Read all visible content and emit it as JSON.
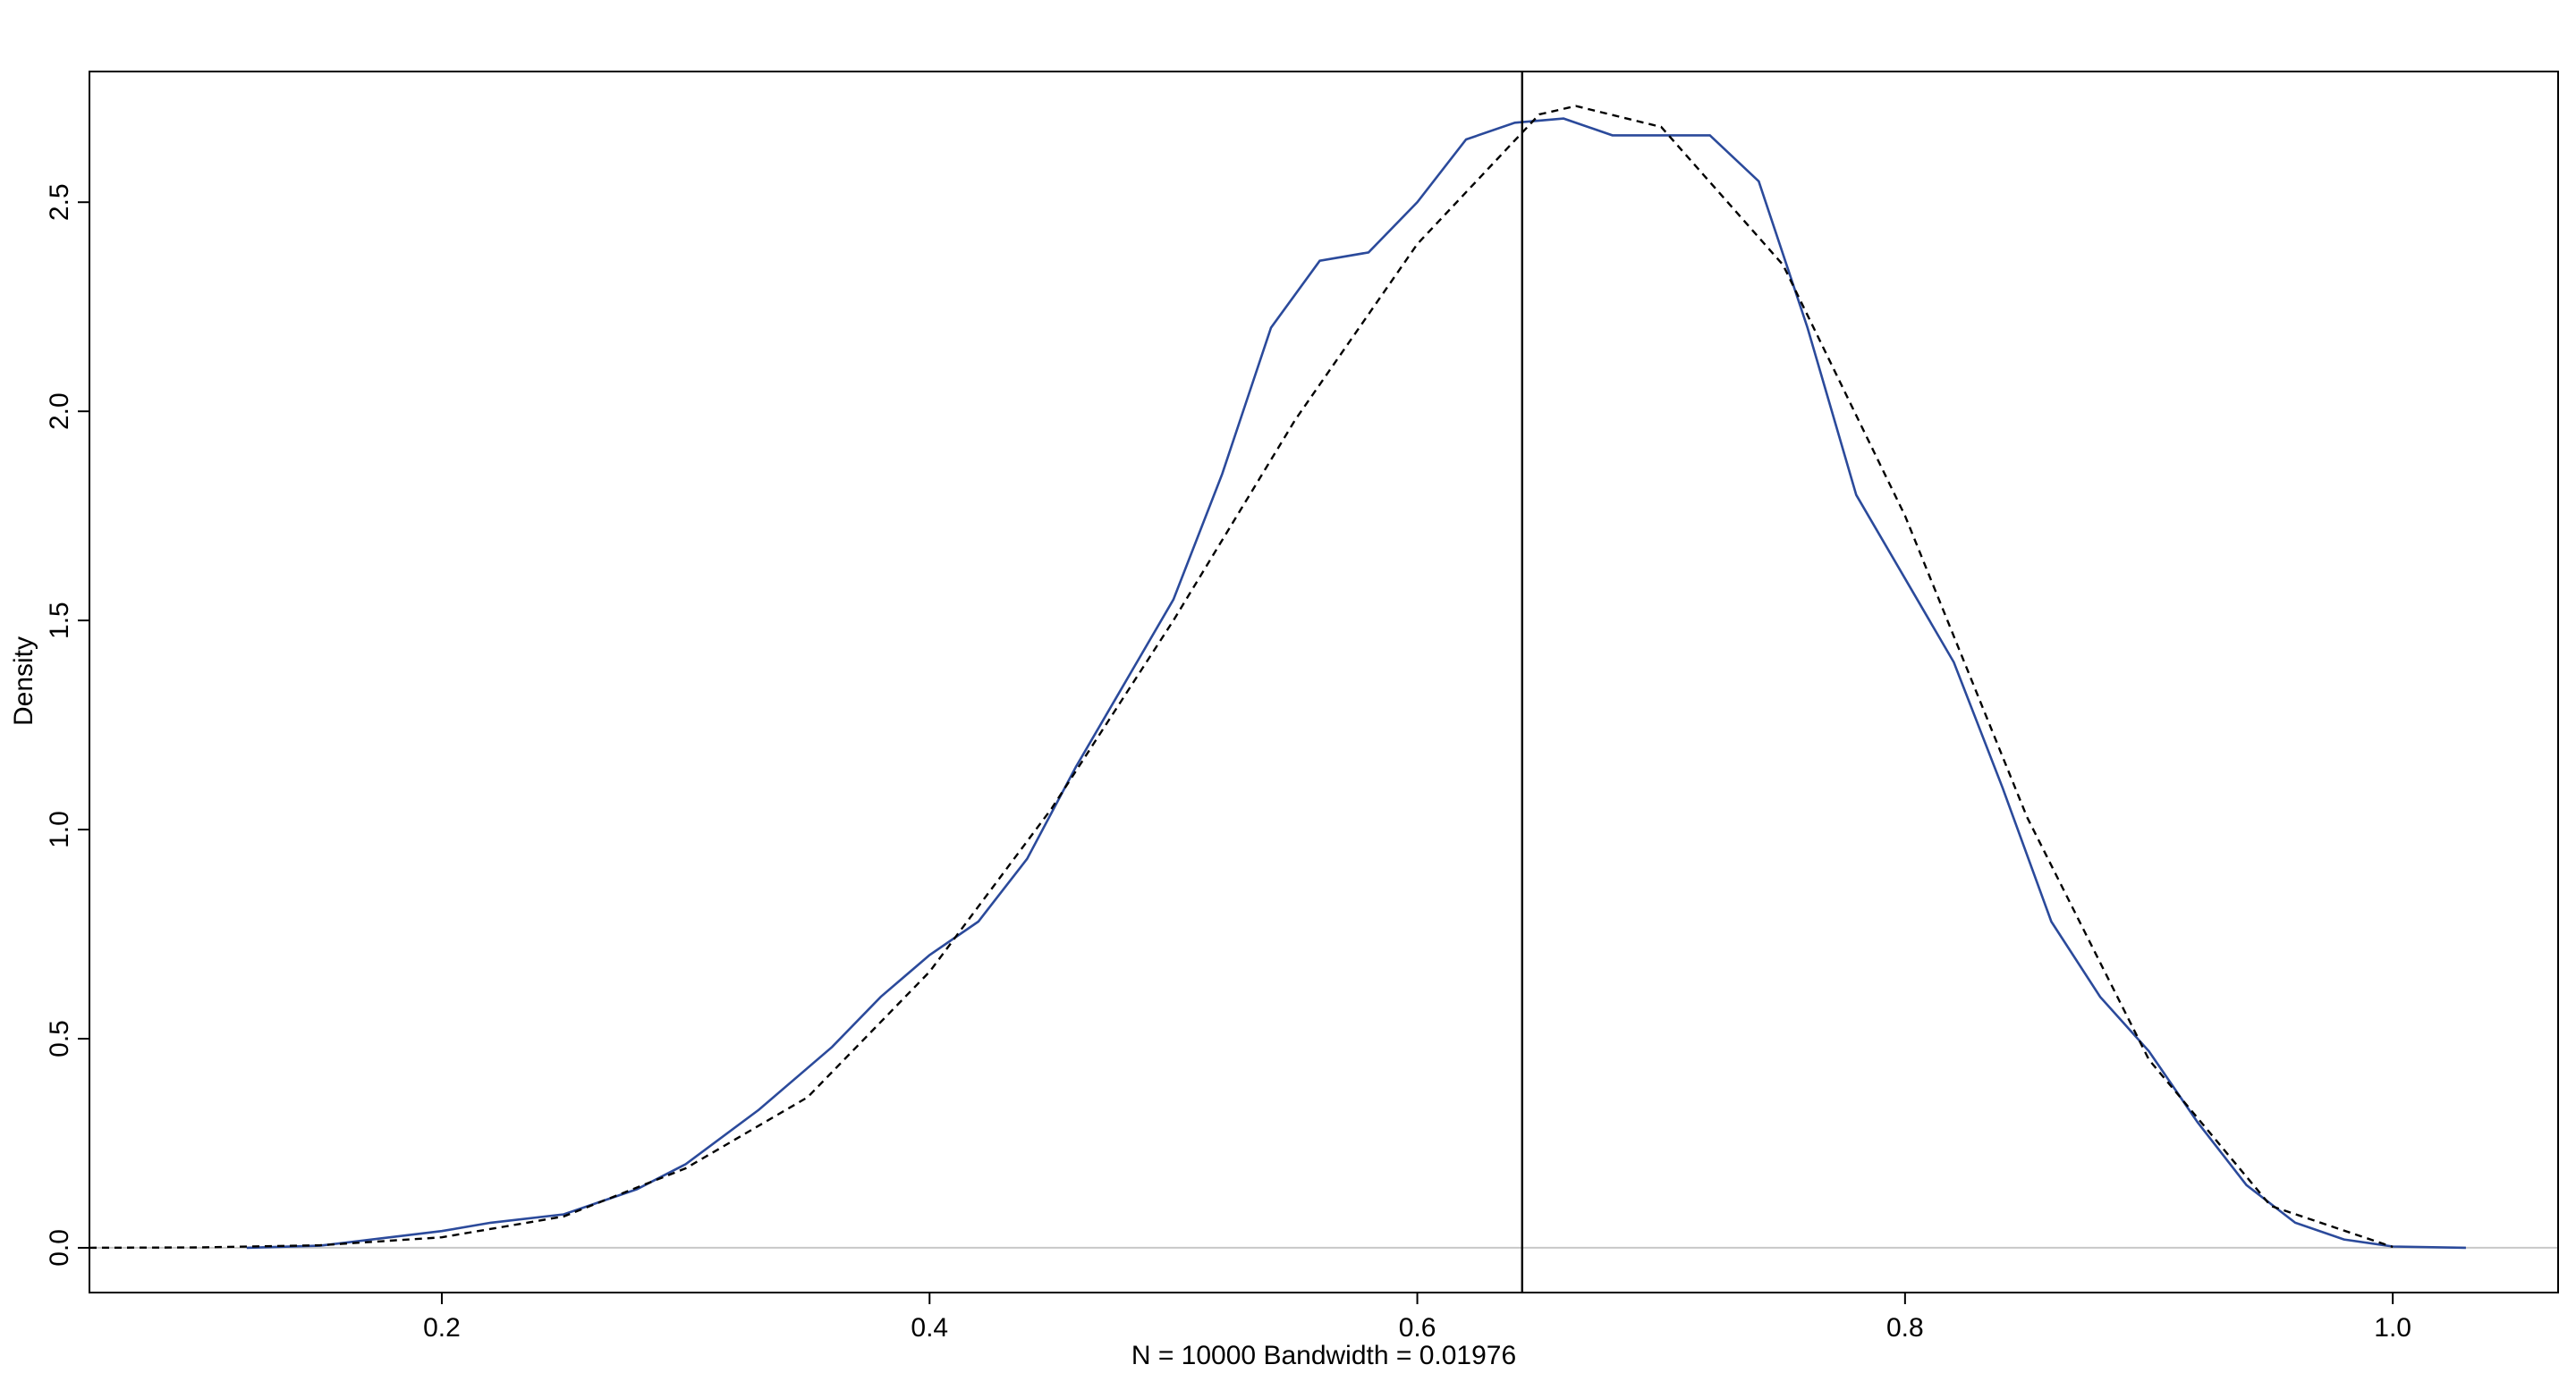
{
  "chart_data": {
    "type": "line",
    "xlabel": "N = 10000   Bandwidth = 0.01976",
    "ylabel": "Density",
    "xlim": [
      0.0555,
      1.0678
    ],
    "ylim": [
      -0.107,
      2.8125
    ],
    "xticks": [
      0.2,
      0.4,
      0.6,
      0.8,
      {
        "value": 1,
        "label": "1.0"
      }
    ],
    "yticks": [
      {
        "value": 0,
        "label": "0.0"
      },
      0.5,
      {
        "value": 1,
        "label": "1.0"
      },
      1.5,
      {
        "value": 2,
        "label": "2.0"
      },
      2.5
    ],
    "zero_line": true,
    "vline": 0.643,
    "series": [
      {
        "color": "#2b4a9b",
        "dash": false,
        "x": [
          0.12,
          0.15,
          0.2,
          0.22,
          0.25,
          0.28,
          0.3,
          0.33,
          0.36,
          0.38,
          0.4,
          0.42,
          0.44,
          0.46,
          0.48,
          0.5,
          0.52,
          0.54,
          0.56,
          0.58,
          0.6,
          0.62,
          0.64,
          0.66,
          0.68,
          0.7,
          0.72,
          0.74,
          0.76,
          0.78,
          0.8,
          0.82,
          0.84,
          0.86,
          0.88,
          0.9,
          0.92,
          0.94,
          0.96,
          0.98,
          1.0,
          1.03
        ],
        "values": [
          0,
          0.005,
          0.04,
          0.06,
          0.08,
          0.14,
          0.2,
          0.33,
          0.48,
          0.6,
          0.7,
          0.78,
          0.93,
          1.15,
          1.35,
          1.55,
          1.85,
          2.2,
          2.36,
          2.38,
          2.5,
          2.65,
          2.69,
          2.7,
          2.66,
          2.66,
          2.66,
          2.55,
          2.2,
          1.8,
          1.6,
          1.4,
          1.1,
          0.78,
          0.6,
          0.47,
          0.3,
          0.15,
          0.06,
          0.02,
          0.003,
          0
        ]
      },
      {
        "color": "#000000",
        "dash": true,
        "x": [
          0.0555,
          0.1,
          0.15,
          0.2,
          0.25,
          0.3,
          0.35,
          0.4,
          0.45,
          0.5,
          0.55,
          0.6,
          0.65,
          0.665,
          0.7,
          0.75,
          0.8,
          0.85,
          0.9,
          0.95,
          1.0
        ],
        "values": [
          0,
          0.001,
          0.006,
          0.025,
          0.075,
          0.19,
          0.36,
          0.66,
          1.05,
          1.5,
          1.98,
          2.4,
          2.71,
          2.73,
          2.68,
          2.35,
          1.75,
          1.03,
          0.45,
          0.1,
          0.002
        ]
      }
    ]
  }
}
